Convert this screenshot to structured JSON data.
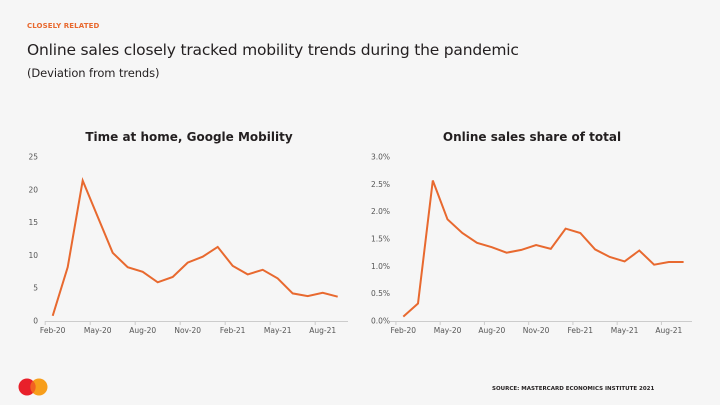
{
  "header": {
    "kicker": "CLOSELY RELATED",
    "title": "Online sales closely tracked mobility trends during the pandemic",
    "subtitle": "(Deviation from trends)"
  },
  "footer": {
    "source": "SOURCE: MASTERCARD ECONOMICS INSTITUTE 2021",
    "logo": "mastercard-logo"
  },
  "colors": {
    "accent": "#e8692f",
    "logo_red": "#e8202a",
    "logo_orange": "#f79e1b",
    "axis": "#cccccc",
    "background": "#f6f6f6"
  },
  "chart_data": [
    {
      "type": "line",
      "title": "Time at home, Google Mobility",
      "xlabel": "",
      "ylabel": "",
      "x": [
        "Feb-20",
        "Mar-20",
        "Apr-20",
        "May-20",
        "Jun-20",
        "Jul-20",
        "Aug-20",
        "Sep-20",
        "Oct-20",
        "Nov-20",
        "Dec-20",
        "Jan-21",
        "Feb-21",
        "Mar-21",
        "Apr-21",
        "May-21",
        "Jun-21",
        "Jul-21",
        "Aug-21",
        "Sep-21"
      ],
      "series": [
        {
          "name": "Time at home",
          "values": [
            0.8,
            8.2,
            21.4,
            15.9,
            10.4,
            8.2,
            7.5,
            5.9,
            6.7,
            8.9,
            9.8,
            11.3,
            8.4,
            7.1,
            7.8,
            6.5,
            4.2,
            3.8,
            4.3,
            3.7
          ]
        }
      ],
      "xticks": [
        "Feb-20",
        "May-20",
        "Aug-20",
        "Nov-20",
        "Feb-21",
        "May-21",
        "Aug-21"
      ],
      "yticks": [
        0,
        5,
        10,
        15,
        20,
        25
      ],
      "ytick_labels": [
        "0",
        "5",
        "10",
        "15",
        "20",
        "25"
      ],
      "ylim": [
        0,
        25
      ],
      "grid": false,
      "legend": "none"
    },
    {
      "type": "line",
      "title": "Online sales share of total",
      "xlabel": "",
      "ylabel": "",
      "x": [
        "Feb-20",
        "Mar-20",
        "Apr-20",
        "May-20",
        "Jun-20",
        "Jul-20",
        "Aug-20",
        "Sep-20",
        "Oct-20",
        "Nov-20",
        "Dec-20",
        "Jan-21",
        "Feb-21",
        "Mar-21",
        "Apr-21",
        "May-21",
        "Jun-21",
        "Jul-21",
        "Aug-21",
        "Sep-21"
      ],
      "series": [
        {
          "name": "Online sales share",
          "values": [
            0.08,
            0.32,
            2.57,
            1.86,
            1.61,
            1.43,
            1.35,
            1.25,
            1.3,
            1.39,
            1.32,
            1.69,
            1.61,
            1.31,
            1.17,
            1.09,
            1.29,
            1.03,
            1.08,
            1.08
          ]
        }
      ],
      "xticks": [
        "Feb-20",
        "May-20",
        "Aug-20",
        "Nov-20",
        "Feb-21",
        "May-21",
        "Aug-21"
      ],
      "yticks": [
        0,
        0.5,
        1.0,
        1.5,
        2.0,
        2.5,
        3.0
      ],
      "ytick_labels": [
        "0.0%",
        "0.5%",
        "1.0%",
        "1.5%",
        "2.0%",
        "2.5%",
        "3.0%"
      ],
      "ylim": [
        0,
        3.0
      ],
      "grid": false,
      "legend": "none"
    }
  ]
}
